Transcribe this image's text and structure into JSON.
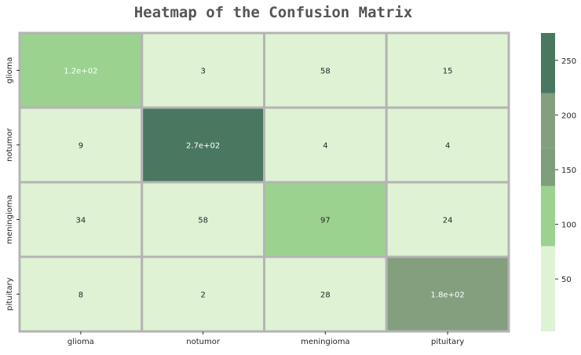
{
  "chart_data": {
    "type": "heatmap",
    "title": "Heatmap of the Confusion Matrix",
    "xlabel": "",
    "ylabel": "",
    "x_categories": [
      "glioma",
      "notumor",
      "meningioma",
      "pituitary"
    ],
    "y_categories": [
      "glioma",
      "notumor",
      "meningioma",
      "pituitary"
    ],
    "values": [
      [
        120,
        3,
        58,
        15
      ],
      [
        9,
        270,
        4,
        4
      ],
      [
        34,
        58,
        97,
        24
      ],
      [
        8,
        2,
        28,
        180
      ]
    ],
    "cell_labels": [
      [
        "1.2e+02",
        "3",
        "58",
        "15"
      ],
      [
        "9",
        "2.7e+02",
        "4",
        "4"
      ],
      [
        "34",
        "58",
        "97",
        "24"
      ],
      [
        "8",
        "2",
        "28",
        "1.8e+02"
      ]
    ],
    "colorbar": {
      "range": [
        2,
        275
      ],
      "ticks": [
        50,
        100,
        150,
        200,
        250
      ],
      "tick_labels": [
        "50",
        "100",
        "150",
        "200",
        "250"
      ],
      "levels": [
        {
          "from": 2,
          "to": 80,
          "color": "#dff2d4"
        },
        {
          "from": 80,
          "to": 135,
          "color": "#9bd290"
        },
        {
          "from": 135,
          "to": 170,
          "color": "#7f9e7c"
        },
        {
          "from": 170,
          "to": 220,
          "color": "#839f7e"
        },
        {
          "from": 220,
          "to": 275,
          "color": "#4a7760"
        }
      ]
    },
    "colors": {
      "grid_line": "#b4b4b4",
      "title": "#555555",
      "text_dark": "#262626",
      "text_light": "#ffffff"
    }
  }
}
